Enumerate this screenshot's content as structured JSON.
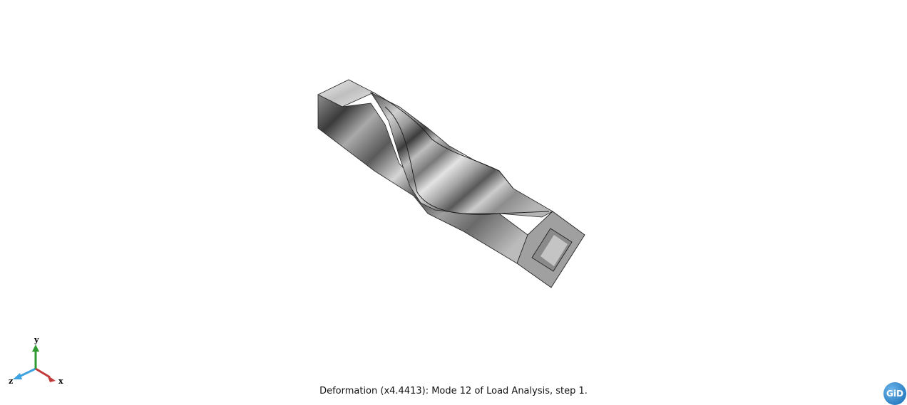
{
  "status": {
    "text": "Deformation (x4.4413): Mode 12 of Load Analysis, step 1."
  },
  "axes": {
    "x_label": "x",
    "y_label": "y",
    "z_label": "z",
    "x_color": "#c23a3a",
    "y_color": "#2f9a2f",
    "z_color": "#3fa3e0"
  },
  "logo": {
    "text": "GiD"
  },
  "colors": {
    "background": "#ffffff",
    "mesh_light": "#d9d9d9",
    "mesh_dark": "#3e3e3e",
    "edge": "#1a1a1a"
  }
}
